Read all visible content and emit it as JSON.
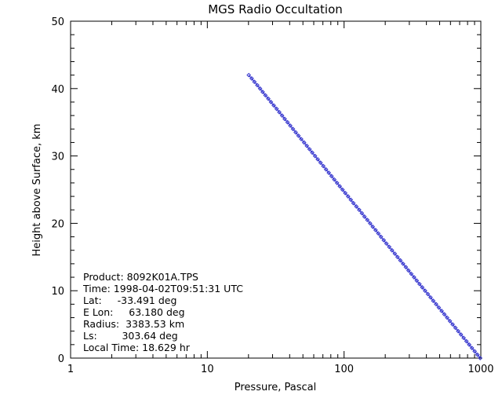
{
  "chart_data": {
    "type": "scatter",
    "title": "MGS Radio Occultation",
    "xlabel": "Pressure, Pascal",
    "ylabel": "Height above Surface, km",
    "x_scale": "log",
    "xlim": [
      1,
      1000
    ],
    "ylim": [
      0,
      50
    ],
    "x_ticks": [
      {
        "value": 1,
        "label": "1"
      },
      {
        "value": 10,
        "label": "10"
      },
      {
        "value": 100,
        "label": "100"
      },
      {
        "value": 1000,
        "label": "1000"
      }
    ],
    "y_ticks": [
      {
        "value": 0,
        "label": "0"
      },
      {
        "value": 10,
        "label": "10"
      },
      {
        "value": 20,
        "label": "20"
      },
      {
        "value": 30,
        "label": "30"
      },
      {
        "value": 40,
        "label": "40"
      },
      {
        "value": 50,
        "label": "50"
      }
    ],
    "grid": false,
    "series": [
      {
        "marker": "diamond",
        "line_color": "#2222cc",
        "marker_color": "#3333cc",
        "x": [
          990,
          945,
          902,
          861,
          822,
          785,
          749,
          715,
          683,
          652,
          622,
          594,
          567,
          541,
          517,
          493,
          471,
          449,
          429,
          410,
          391,
          373,
          356,
          340,
          325,
          310,
          296,
          283,
          270,
          258,
          246,
          235,
          224,
          214,
          204,
          195,
          186,
          178,
          170,
          162,
          155,
          148,
          141,
          135,
          129,
          123,
          117,
          112,
          107,
          102,
          97.4,
          93.0,
          88.8,
          84.8,
          81.0,
          77.3,
          73.8,
          70.5,
          67.3,
          64.2,
          61.3,
          58.5,
          55.9,
          53.4,
          51.0,
          48.6,
          46.4,
          44.3,
          42.3,
          40.4,
          38.6,
          36.8,
          35.2,
          33.6,
          32.1,
          30.6,
          29.2,
          27.9,
          26.6,
          25.4,
          24.3,
          23.2,
          22.1,
          21.1,
          20.1
        ],
        "y": [
          0.0,
          0.5,
          1.0,
          1.5,
          2.0,
          2.5,
          3.0,
          3.5,
          4.0,
          4.5,
          5.0,
          5.5,
          6.0,
          6.5,
          7.0,
          7.5,
          8.0,
          8.5,
          9.0,
          9.5,
          10.0,
          10.5,
          11.0,
          11.5,
          12.0,
          12.5,
          13.0,
          13.5,
          14.0,
          14.5,
          15.0,
          15.5,
          16.0,
          16.5,
          17.0,
          17.5,
          18.0,
          18.5,
          19.0,
          19.5,
          20.0,
          20.5,
          21.0,
          21.5,
          22.0,
          22.5,
          23.0,
          23.5,
          24.0,
          24.5,
          25.0,
          25.5,
          26.0,
          26.5,
          27.0,
          27.5,
          28.0,
          28.5,
          29.0,
          29.5,
          30.0,
          30.5,
          31.0,
          31.5,
          32.0,
          32.5,
          33.0,
          33.5,
          34.0,
          34.5,
          35.0,
          35.5,
          36.0,
          36.5,
          37.0,
          37.5,
          38.0,
          38.5,
          39.0,
          39.5,
          40.0,
          40.5,
          41.0,
          41.5,
          42.0
        ]
      }
    ],
    "annotations": [
      "Product: 8092K01A.TPS",
      "Time: 1998-04-02T09:51:31 UTC",
      "Lat:     -33.491 deg",
      "E Lon:     63.180 deg",
      "Radius:  3383.53 km",
      "Ls:        303.64 deg",
      "Local Time: 18.629 hr"
    ]
  }
}
